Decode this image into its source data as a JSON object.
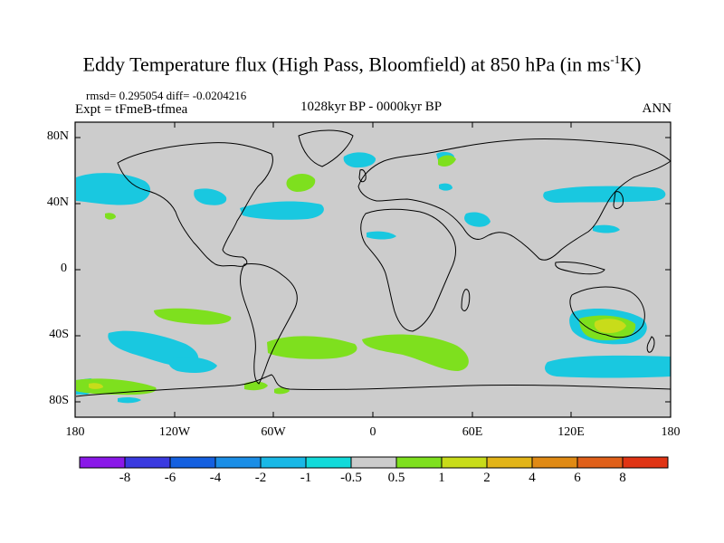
{
  "title": {
    "main": "Eddy Temperature flux (High Pass, Bloomfield) at 850 hPa (in ms",
    "sup": "-1",
    "tail": "K)"
  },
  "stats": "rmsd= 0.295054 diff= -0.0204216",
  "expt": "Expt = tFmeB-tfmea",
  "period": "1028kyr BP - 0000kyr BP",
  "season": "ANN",
  "lat_labels": [
    "80N",
    "40N",
    "0",
    "40S",
    "80S"
  ],
  "lon_labels": [
    "180",
    "120W",
    "60W",
    "0",
    "60E",
    "120E",
    "180"
  ],
  "colorbar": {
    "labels": [
      "-8",
      "-6",
      "-4",
      "-2",
      "-1",
      "-0.5",
      "0.5",
      "1",
      "2",
      "4",
      "6",
      "8"
    ],
    "colors": [
      "#8a18e8",
      "#3a3ae0",
      "#1560e0",
      "#1b8ee6",
      "#19b8e6",
      "#12dada",
      "#cccccc",
      "#7ee01e",
      "#c8dc1a",
      "#e2b418",
      "#e08a14",
      "#e0601a",
      "#e03414"
    ]
  },
  "map_colors": {
    "ocean": "#cccccc",
    "coast": "#000000"
  }
}
